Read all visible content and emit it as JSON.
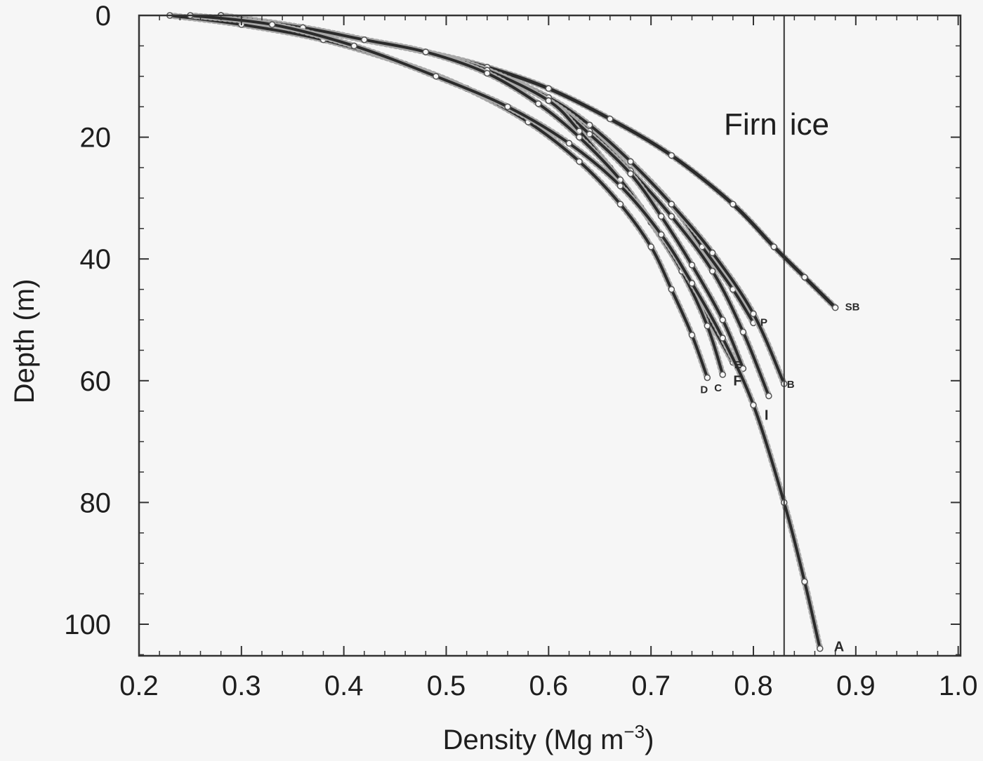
{
  "chart_data": {
    "type": "line",
    "title": "",
    "xlabel": "Density (Mg m",
    "xlabel_superscript": "−3",
    "xlabel_suffix": ")",
    "ylabel": "Depth (m)",
    "xlim": [
      0.2,
      1.0
    ],
    "ylim": [
      0,
      105
    ],
    "y_inverted": true,
    "x_ticks": [
      0.2,
      0.3,
      0.4,
      0.5,
      0.6,
      0.7,
      0.8,
      0.9,
      1.0
    ],
    "x_tick_labels": [
      "0.2",
      "0.3",
      "0.4",
      "0.5",
      "0.6",
      "0.7",
      "0.8",
      "0.9",
      "1.0"
    ],
    "y_ticks": [
      0,
      20,
      40,
      60,
      80,
      100
    ],
    "y_tick_labels": [
      "0",
      "20",
      "40",
      "60",
      "80",
      "100"
    ],
    "grid": false,
    "line_color": "#2b2b2b",
    "reference_line": {
      "x": 0.83,
      "label_left": "Firn",
      "label_right": "ice"
    },
    "series": [
      {
        "name": "SB",
        "x": [
          0.28,
          0.36,
          0.42,
          0.48,
          0.54,
          0.6,
          0.66,
          0.72,
          0.78,
          0.82,
          0.85,
          0.88
        ],
        "y": [
          0,
          2,
          4,
          6,
          8.5,
          12,
          17,
          23,
          31,
          38,
          43,
          48
        ]
      },
      {
        "name": "P",
        "x": [
          0.28,
          0.36,
          0.42,
          0.48,
          0.54,
          0.6,
          0.64,
          0.68,
          0.72,
          0.75,
          0.78,
          0.8
        ],
        "y": [
          0,
          2,
          4,
          6,
          9,
          13.5,
          18,
          24,
          31,
          38,
          45,
          50.5
        ]
      },
      {
        "name": "B",
        "x": [
          0.28,
          0.36,
          0.42,
          0.48,
          0.54,
          0.6,
          0.64,
          0.68,
          0.72,
          0.76,
          0.8,
          0.83
        ],
        "y": [
          0,
          2,
          4,
          6,
          9,
          13.5,
          18,
          24,
          31,
          39,
          49,
          60.5
        ]
      },
      {
        "name": "I",
        "x": [
          0.28,
          0.36,
          0.42,
          0.48,
          0.54,
          0.6,
          0.64,
          0.68,
          0.72,
          0.76,
          0.79,
          0.815
        ],
        "y": [
          0,
          2,
          4,
          6,
          9,
          14,
          19,
          25.5,
          33,
          42,
          52,
          62.5
        ]
      },
      {
        "name": "F",
        "x": [
          0.28,
          0.36,
          0.42,
          0.48,
          0.54,
          0.6,
          0.64,
          0.68,
          0.71,
          0.74,
          0.77,
          0.79
        ],
        "y": [
          0,
          2,
          4,
          6,
          9,
          14,
          19.5,
          26,
          33,
          41,
          50,
          58
        ]
      },
      {
        "name": "E",
        "x": [
          0.28,
          0.36,
          0.42,
          0.48,
          0.54,
          0.6,
          0.63,
          0.66,
          0.69,
          0.72,
          0.75,
          0.78
        ],
        "y": [
          0,
          2,
          4,
          6,
          9,
          14,
          19,
          25,
          31.5,
          39,
          48,
          57
        ]
      },
      {
        "name": "C",
        "x": [
          0.28,
          0.36,
          0.42,
          0.48,
          0.54,
          0.59,
          0.63,
          0.67,
          0.7,
          0.73,
          0.755,
          0.77
        ],
        "y": [
          0,
          2,
          4,
          6,
          9.5,
          14.5,
          20,
          27,
          34,
          42,
          51,
          59
        ]
      },
      {
        "name": "D",
        "x": [
          0.23,
          0.3,
          0.38,
          0.46,
          0.52,
          0.58,
          0.63,
          0.67,
          0.7,
          0.72,
          0.74,
          0.755
        ],
        "y": [
          0,
          1.5,
          4,
          8,
          12,
          17.5,
          24,
          31,
          38,
          45,
          52.5,
          59.5
        ]
      },
      {
        "name": "A",
        "x": [
          0.25,
          0.33,
          0.41,
          0.49,
          0.56,
          0.62,
          0.67,
          0.71,
          0.74,
          0.77,
          0.8,
          0.83,
          0.85,
          0.865
        ],
        "y": [
          0,
          1.5,
          5,
          10,
          15,
          21,
          28,
          36,
          44,
          53,
          64,
          80,
          93,
          104
        ]
      }
    ]
  }
}
